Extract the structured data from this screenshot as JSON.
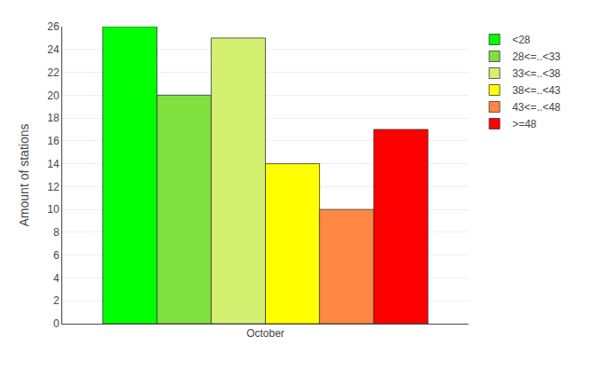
{
  "chart_data": {
    "type": "bar",
    "categories": [
      "October"
    ],
    "series": [
      {
        "name": "<28",
        "color": "#00ff00",
        "values": [
          26
        ]
      },
      {
        "name": "28<=..<33",
        "color": "#80e040",
        "values": [
          20
        ]
      },
      {
        "name": "33<=..<38",
        "color": "#d4f070",
        "values": [
          25
        ]
      },
      {
        "name": "38<=..<43",
        "color": "#ffff00",
        "values": [
          14
        ]
      },
      {
        "name": "43<=..<48",
        "color": "#ff8844",
        "values": [
          10
        ]
      },
      {
        "name": ">=48",
        "color": "#ff0000",
        "values": [
          17
        ]
      }
    ],
    "ylabel": "Amount of stations",
    "ylim": [
      0,
      26
    ],
    "yticks": [
      0,
      2,
      4,
      6,
      8,
      10,
      12,
      14,
      16,
      18,
      20,
      22,
      24,
      26
    ],
    "grid": true,
    "legend": "upper right"
  }
}
